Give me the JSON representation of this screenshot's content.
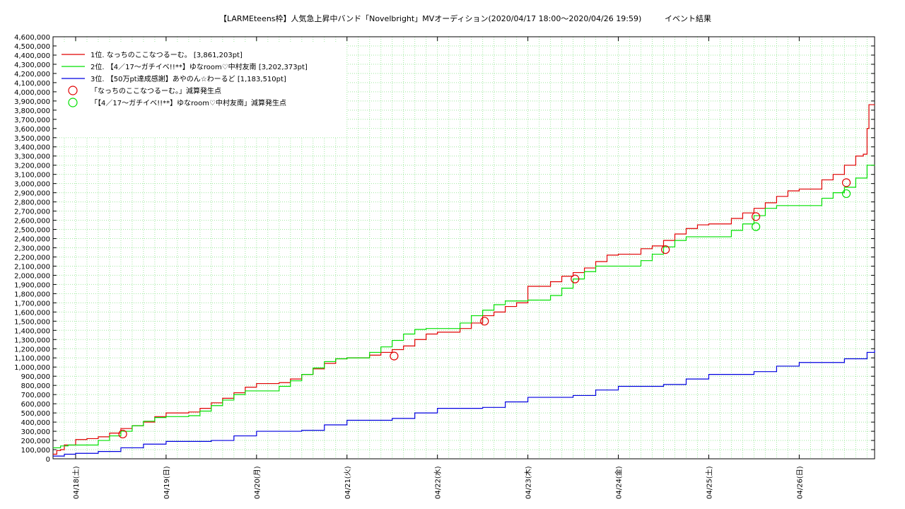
{
  "chart_data": {
    "type": "line",
    "title": "【LARMEteens枠】人気急上昇中バンド「Novelbright」MVオーディション(2020/04/17 18:00〜2020/04/26 19:59)",
    "subtitle": "イベント結果",
    "ylim": [
      0,
      4600000
    ],
    "yticks": [
      0,
      100000,
      200000,
      300000,
      400000,
      500000,
      600000,
      700000,
      800000,
      900000,
      1000000,
      1100000,
      1200000,
      1300000,
      1400000,
      1500000,
      1600000,
      1700000,
      1800000,
      1900000,
      2000000,
      2100000,
      2200000,
      2300000,
      2400000,
      2500000,
      2600000,
      2700000,
      2800000,
      2900000,
      3000000,
      3100000,
      3200000,
      3300000,
      3400000,
      3500000,
      3600000,
      3700000,
      3800000,
      3900000,
      4000000,
      4100000,
      4200000,
      4300000,
      4400000,
      4500000,
      4600000
    ],
    "xlim": [
      "2020-04-17 18:00",
      "2020-04-26 20:00"
    ],
    "xticks": [
      {
        "at": "2020-04-18 00:00",
        "label": "04/18(土)"
      },
      {
        "at": "2020-04-19 00:00",
        "label": "04/19(日)"
      },
      {
        "at": "2020-04-20 00:00",
        "label": "04/20(月)"
      },
      {
        "at": "2020-04-21 00:00",
        "label": "04/21(火)"
      },
      {
        "at": "2020-04-22 00:00",
        "label": "04/22(水)"
      },
      {
        "at": "2020-04-23 00:00",
        "label": "04/23(木)"
      },
      {
        "at": "2020-04-24 00:00",
        "label": "04/24(金)"
      },
      {
        "at": "2020-04-25 00:00",
        "label": "04/25(土)"
      },
      {
        "at": "2020-04-26 00:00",
        "label": "04/26(日)"
      }
    ],
    "grid": true,
    "legend_position": "top-left",
    "series": [
      {
        "name": "1位. なっちのここなつるーむ。 [3,861,203pt]",
        "color": "#e00000",
        "points": [
          [
            "2020-04-17 18:00",
            50000
          ],
          [
            "2020-04-17 19:00",
            90000
          ],
          [
            "2020-04-17 20:00",
            100000
          ],
          [
            "2020-04-17 21:00",
            150000
          ],
          [
            "2020-04-17 23:00",
            150000
          ],
          [
            "2020-04-18 00:00",
            210000
          ],
          [
            "2020-04-18 03:00",
            220000
          ],
          [
            "2020-04-18 06:00",
            240000
          ],
          [
            "2020-04-18 09:00",
            280000
          ],
          [
            "2020-04-18 12:00",
            330000
          ],
          [
            "2020-04-18 15:00",
            360000
          ],
          [
            "2020-04-18 18:00",
            400000
          ],
          [
            "2020-04-18 21:00",
            460000
          ],
          [
            "2020-04-19 00:00",
            500000
          ],
          [
            "2020-04-19 06:00",
            510000
          ],
          [
            "2020-04-19 09:00",
            550000
          ],
          [
            "2020-04-19 12:00",
            610000
          ],
          [
            "2020-04-19 15:00",
            660000
          ],
          [
            "2020-04-19 18:00",
            720000
          ],
          [
            "2020-04-19 21:00",
            780000
          ],
          [
            "2020-04-20 00:00",
            820000
          ],
          [
            "2020-04-20 06:00",
            830000
          ],
          [
            "2020-04-20 09:00",
            870000
          ],
          [
            "2020-04-20 12:00",
            920000
          ],
          [
            "2020-04-20 15:00",
            980000
          ],
          [
            "2020-04-20 18:00",
            1040000
          ],
          [
            "2020-04-20 21:00",
            1090000
          ],
          [
            "2020-04-21 00:00",
            1100000
          ],
          [
            "2020-04-21 06:00",
            1130000
          ],
          [
            "2020-04-21 09:00",
            1160000
          ],
          [
            "2020-04-21 12:00",
            1190000
          ],
          [
            "2020-04-21 15:00",
            1230000
          ],
          [
            "2020-04-21 18:00",
            1300000
          ],
          [
            "2020-04-21 21:00",
            1360000
          ],
          [
            "2020-04-22 00:00",
            1380000
          ],
          [
            "2020-04-22 06:00",
            1420000
          ],
          [
            "2020-04-22 09:00",
            1480000
          ],
          [
            "2020-04-22 12:00",
            1560000
          ],
          [
            "2020-04-22 15:00",
            1600000
          ],
          [
            "2020-04-22 18:00",
            1660000
          ],
          [
            "2020-04-22 21:00",
            1700000
          ],
          [
            "2020-04-23 00:00",
            1880000
          ],
          [
            "2020-04-23 06:00",
            1930000
          ],
          [
            "2020-04-23 09:00",
            1990000
          ],
          [
            "2020-04-23 12:00",
            2030000
          ],
          [
            "2020-04-23 15:00",
            2080000
          ],
          [
            "2020-04-23 18:00",
            2150000
          ],
          [
            "2020-04-23 21:00",
            2220000
          ],
          [
            "2020-04-24 00:00",
            2230000
          ],
          [
            "2020-04-24 06:00",
            2290000
          ],
          [
            "2020-04-24 09:00",
            2320000
          ],
          [
            "2020-04-24 12:00",
            2380000
          ],
          [
            "2020-04-24 15:00",
            2450000
          ],
          [
            "2020-04-24 18:00",
            2510000
          ],
          [
            "2020-04-24 21:00",
            2550000
          ],
          [
            "2020-04-25 00:00",
            2560000
          ],
          [
            "2020-04-25 06:00",
            2620000
          ],
          [
            "2020-04-25 09:00",
            2680000
          ],
          [
            "2020-04-25 12:00",
            2730000
          ],
          [
            "2020-04-25 15:00",
            2790000
          ],
          [
            "2020-04-25 18:00",
            2860000
          ],
          [
            "2020-04-25 21:00",
            2920000
          ],
          [
            "2020-04-26 00:00",
            2940000
          ],
          [
            "2020-04-26 06:00",
            3040000
          ],
          [
            "2020-04-26 09:00",
            3100000
          ],
          [
            "2020-04-26 12:00",
            3200000
          ],
          [
            "2020-04-26 15:00",
            3300000
          ],
          [
            "2020-04-26 17:00",
            3320000
          ],
          [
            "2020-04-26 18:00",
            3600000
          ],
          [
            "2020-04-26 18:30",
            3860000
          ],
          [
            "2020-04-26 20:00",
            3861203
          ]
        ]
      },
      {
        "name": "2位. 【4／17〜ガチイベ!!**】ゆなroom♡中村友南 [3,202,373pt]",
        "color": "#00e000",
        "points": [
          [
            "2020-04-17 18:00",
            120000
          ],
          [
            "2020-04-17 20:00",
            140000
          ],
          [
            "2020-04-17 22:00",
            150000
          ],
          [
            "2020-04-18 03:00",
            150000
          ],
          [
            "2020-04-18 06:00",
            200000
          ],
          [
            "2020-04-18 09:00",
            250000
          ],
          [
            "2020-04-18 12:00",
            300000
          ],
          [
            "2020-04-18 15:00",
            360000
          ],
          [
            "2020-04-18 18:00",
            410000
          ],
          [
            "2020-04-18 21:00",
            450000
          ],
          [
            "2020-04-19 00:00",
            460000
          ],
          [
            "2020-04-19 06:00",
            470000
          ],
          [
            "2020-04-19 09:00",
            520000
          ],
          [
            "2020-04-19 12:00",
            580000
          ],
          [
            "2020-04-19 15:00",
            640000
          ],
          [
            "2020-04-19 18:00",
            700000
          ],
          [
            "2020-04-19 21:00",
            740000
          ],
          [
            "2020-04-20 00:00",
            740000
          ],
          [
            "2020-04-20 06:00",
            790000
          ],
          [
            "2020-04-20 09:00",
            850000
          ],
          [
            "2020-04-20 12:00",
            920000
          ],
          [
            "2020-04-20 15:00",
            990000
          ],
          [
            "2020-04-20 18:00",
            1060000
          ],
          [
            "2020-04-20 21:00",
            1090000
          ],
          [
            "2020-04-21 00:00",
            1100000
          ],
          [
            "2020-04-21 06:00",
            1160000
          ],
          [
            "2020-04-21 09:00",
            1220000
          ],
          [
            "2020-04-21 12:00",
            1290000
          ],
          [
            "2020-04-21 15:00",
            1360000
          ],
          [
            "2020-04-21 18:00",
            1410000
          ],
          [
            "2020-04-21 21:00",
            1420000
          ],
          [
            "2020-04-22 00:00",
            1420000
          ],
          [
            "2020-04-22 06:00",
            1480000
          ],
          [
            "2020-04-22 09:00",
            1560000
          ],
          [
            "2020-04-22 12:00",
            1620000
          ],
          [
            "2020-04-22 15:00",
            1680000
          ],
          [
            "2020-04-22 18:00",
            1720000
          ],
          [
            "2020-04-23 00:00",
            1730000
          ],
          [
            "2020-04-23 06:00",
            1780000
          ],
          [
            "2020-04-23 09:00",
            1860000
          ],
          [
            "2020-04-23 12:00",
            1960000
          ],
          [
            "2020-04-23 15:00",
            2040000
          ],
          [
            "2020-04-23 18:00",
            2100000
          ],
          [
            "2020-04-24 00:00",
            2100000
          ],
          [
            "2020-04-24 06:00",
            2160000
          ],
          [
            "2020-04-24 09:00",
            2230000
          ],
          [
            "2020-04-24 12:00",
            2310000
          ],
          [
            "2020-04-24 15:00",
            2380000
          ],
          [
            "2020-04-24 18:00",
            2420000
          ],
          [
            "2020-04-25 00:00",
            2420000
          ],
          [
            "2020-04-25 06:00",
            2490000
          ],
          [
            "2020-04-25 09:00",
            2560000
          ],
          [
            "2020-04-25 12:00",
            2650000
          ],
          [
            "2020-04-25 15:00",
            2730000
          ],
          [
            "2020-04-25 18:00",
            2760000
          ],
          [
            "2020-04-26 00:00",
            2760000
          ],
          [
            "2020-04-26 06:00",
            2840000
          ],
          [
            "2020-04-26 09:00",
            2900000
          ],
          [
            "2020-04-26 12:00",
            2960000
          ],
          [
            "2020-04-26 15:00",
            3060000
          ],
          [
            "2020-04-26 18:00",
            3200000
          ],
          [
            "2020-04-26 20:00",
            3202373
          ]
        ]
      },
      {
        "name": "3位. 【50万pt達成感謝】あやのん☆わーるど [1,183,510pt]",
        "color": "#0000e0",
        "points": [
          [
            "2020-04-17 18:00",
            30000
          ],
          [
            "2020-04-17 21:00",
            50000
          ],
          [
            "2020-04-18 00:00",
            60000
          ],
          [
            "2020-04-18 06:00",
            80000
          ],
          [
            "2020-04-18 12:00",
            120000
          ],
          [
            "2020-04-18 18:00",
            160000
          ],
          [
            "2020-04-19 00:00",
            190000
          ],
          [
            "2020-04-19 12:00",
            200000
          ],
          [
            "2020-04-19 18:00",
            250000
          ],
          [
            "2020-04-20 00:00",
            300000
          ],
          [
            "2020-04-20 12:00",
            310000
          ],
          [
            "2020-04-20 18:00",
            370000
          ],
          [
            "2020-04-21 00:00",
            420000
          ],
          [
            "2020-04-21 12:00",
            440000
          ],
          [
            "2020-04-21 18:00",
            500000
          ],
          [
            "2020-04-22 00:00",
            550000
          ],
          [
            "2020-04-22 12:00",
            560000
          ],
          [
            "2020-04-22 18:00",
            620000
          ],
          [
            "2020-04-23 00:00",
            670000
          ],
          [
            "2020-04-23 12:00",
            690000
          ],
          [
            "2020-04-23 18:00",
            750000
          ],
          [
            "2020-04-24 00:00",
            790000
          ],
          [
            "2020-04-24 12:00",
            810000
          ],
          [
            "2020-04-24 18:00",
            870000
          ],
          [
            "2020-04-25 00:00",
            920000
          ],
          [
            "2020-04-25 12:00",
            950000
          ],
          [
            "2020-04-25 18:00",
            1010000
          ],
          [
            "2020-04-26 00:00",
            1050000
          ],
          [
            "2020-04-26 12:00",
            1090000
          ],
          [
            "2020-04-26 18:00",
            1160000
          ],
          [
            "2020-04-26 20:00",
            1183510
          ]
        ]
      }
    ],
    "markers": [
      {
        "name": "「なっちのここなつるーむ。」減算発生点",
        "color": "#e00000",
        "points": [
          [
            "2020-04-18 12:30",
            270000
          ],
          [
            "2020-04-21 12:30",
            1120000
          ],
          [
            "2020-04-22 12:30",
            1500000
          ],
          [
            "2020-04-23 12:30",
            1960000
          ],
          [
            "2020-04-24 12:30",
            2280000
          ],
          [
            "2020-04-25 12:30",
            2640000
          ],
          [
            "2020-04-26 12:30",
            3010000
          ]
        ]
      },
      {
        "name": "「【4／17〜ガチイベ!!**】ゆなroom♡中村友南」減算発生点",
        "color": "#00e000",
        "points": [
          [
            "2020-04-25 12:30",
            2530000
          ],
          [
            "2020-04-26 12:30",
            2890000
          ]
        ]
      }
    ]
  }
}
